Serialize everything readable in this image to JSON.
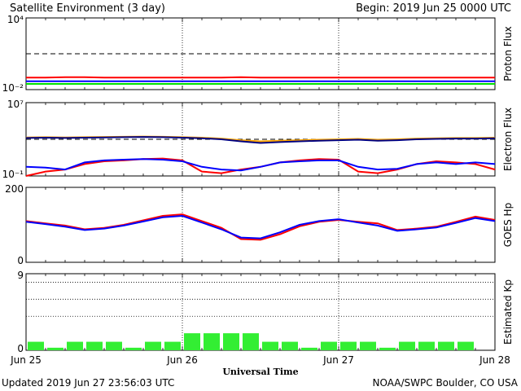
{
  "header": {
    "title": "Satellite Environment (3 day)",
    "begin": "Begin:  2019 Jun 25 0000 UTC"
  },
  "footer": {
    "updated": "Updated 2019 Jun 27 23:56:03 UTC",
    "credit": "NOAA/SWPC Boulder, CO USA"
  },
  "chart_data": [
    {
      "type": "line",
      "ylabel": "Proton Flux",
      "yscale": "log",
      "ylim": [
        0.01,
        10000
      ],
      "ytick_labels": [
        "10⁴",
        "10⁻²"
      ],
      "reference_line": {
        "y": 10,
        "style": "dashed"
      },
      "colors": {
        "high": "#ff0000",
        "mid": "#0000ff",
        "low": "#00e000"
      },
      "x_days": [
        0,
        0.125,
        0.25,
        0.375,
        0.5,
        0.625,
        0.75,
        0.875,
        1,
        1.125,
        1.25,
        1.375,
        1.5,
        1.625,
        1.75,
        1.875,
        2,
        2.125,
        2.25,
        2.375,
        2.5,
        2.625,
        2.75,
        2.875,
        3
      ],
      "series": [
        {
          "key": "high",
          "values": [
            0.1,
            0.1,
            0.11,
            0.11,
            0.1,
            0.1,
            0.1,
            0.1,
            0.1,
            0.1,
            0.1,
            0.11,
            0.1,
            0.1,
            0.1,
            0.1,
            0.1,
            0.1,
            0.1,
            0.1,
            0.1,
            0.1,
            0.1,
            0.1,
            0.1
          ]
        },
        {
          "key": "mid",
          "values": [
            0.05,
            0.05,
            0.05,
            0.05,
            0.05,
            0.05,
            0.05,
            0.05,
            0.05,
            0.05,
            0.05,
            0.05,
            0.05,
            0.05,
            0.05,
            0.05,
            0.05,
            0.05,
            0.05,
            0.05,
            0.05,
            0.05,
            0.05,
            0.05,
            0.05
          ]
        },
        {
          "key": "low",
          "values": [
            0.03,
            0.03,
            0.03,
            0.03,
            0.03,
            0.03,
            0.03,
            0.03,
            0.03,
            0.03,
            0.03,
            0.03,
            0.03,
            0.03,
            0.03,
            0.03,
            0.03,
            0.03,
            0.03,
            0.03,
            0.03,
            0.03,
            0.03,
            0.03,
            0.03
          ]
        }
      ]
    },
    {
      "type": "line",
      "ylabel": "Electron Flux",
      "yscale": "log",
      "ylim": [
        0.1,
        10000000
      ],
      "ytick_labels": [
        "10⁷",
        "10⁻¹"
      ],
      "reference_line": {
        "y": 1000,
        "style": "dashed"
      },
      "colors": {
        "high_energy": "#ff0000",
        "high_energy_2": "#0000ff",
        "low_energy": "#ffa500",
        "low_energy_2": "#000080"
      },
      "x_days": [
        0,
        0.125,
        0.25,
        0.375,
        0.5,
        0.625,
        0.75,
        0.875,
        1,
        1.125,
        1.25,
        1.375,
        1.5,
        1.625,
        1.75,
        1.875,
        2,
        2.125,
        2.25,
        2.375,
        2.5,
        2.625,
        2.75,
        2.875,
        3
      ],
      "series": [
        {
          "key": "low_energy",
          "values": [
            1600,
            1700,
            1600,
            1700,
            1800,
            1900,
            2000,
            1900,
            1700,
            1500,
            1200,
            800,
            600,
            700,
            800,
            900,
            1000,
            1100,
            900,
            1000,
            1200,
            1300,
            1400,
            1400,
            1500
          ]
        },
        {
          "key": "low_energy_2",
          "values": [
            1400,
            1500,
            1400,
            1500,
            1600,
            1700,
            1800,
            1700,
            1500,
            1300,
            1000,
            600,
            400,
            500,
            600,
            700,
            800,
            900,
            700,
            800,
            1000,
            1100,
            1200,
            1200,
            1300
          ]
        },
        {
          "key": "high_energy",
          "values": [
            0.1,
            0.3,
            0.5,
            2,
            4,
            5,
            7,
            8,
            5,
            0.3,
            0.2,
            0.5,
            1,
            3,
            5,
            7,
            6,
            0.3,
            0.2,
            0.5,
            2,
            4,
            3,
            2,
            0.5
          ]
        },
        {
          "key": "high_energy_2",
          "values": [
            1,
            0.8,
            0.5,
            3,
            5,
            6,
            7,
            6,
            4,
            1,
            0.5,
            0.4,
            1,
            3,
            4,
            5,
            5,
            1,
            0.5,
            0.6,
            2,
            3,
            2,
            3,
            2
          ]
        }
      ]
    },
    {
      "type": "line",
      "ylabel": "GOES Hp",
      "yscale": "linear",
      "ylim": [
        0,
        200
      ],
      "ytick_labels": [
        "200",
        "0"
      ],
      "colors": {
        "goes_a": "#ff0000",
        "goes_b": "#0000ff"
      },
      "x_days": [
        0,
        0.125,
        0.25,
        0.375,
        0.5,
        0.625,
        0.75,
        0.875,
        1,
        1.125,
        1.25,
        1.375,
        1.5,
        1.625,
        1.75,
        1.875,
        2,
        2.125,
        2.25,
        2.375,
        2.5,
        2.625,
        2.75,
        2.875,
        3
      ],
      "series": [
        {
          "key": "goes_a",
          "values": [
            110,
            104,
            98,
            88,
            92,
            100,
            112,
            124,
            128,
            110,
            92,
            62,
            60,
            75,
            96,
            108,
            113,
            108,
            104,
            86,
            90,
            95,
            108,
            122,
            113
          ]
        },
        {
          "key": "goes_b",
          "values": [
            108,
            102,
            95,
            86,
            90,
            98,
            109,
            120,
            124,
            106,
            88,
            66,
            64,
            80,
            100,
            110,
            115,
            106,
            98,
            84,
            88,
            93,
            105,
            118,
            110
          ]
        }
      ]
    },
    {
      "type": "bar",
      "ylabel": "Estimated Kp",
      "ylim": [
        0,
        9
      ],
      "ytick_labels": [
        "9",
        "0"
      ],
      "kp_gridlines": [
        4,
        6,
        8
      ],
      "bar_color": "#33ee33",
      "x_day_start": [
        0,
        0.125,
        0.25,
        0.375,
        0.5,
        0.625,
        0.75,
        0.875,
        1,
        1.125,
        1.25,
        1.375,
        1.5,
        1.625,
        1.75,
        1.875,
        2,
        2.125,
        2.25,
        2.375,
        2.5,
        2.625,
        2.75,
        2.875
      ],
      "values": [
        1,
        0.3,
        1,
        1,
        1,
        0.3,
        1,
        1,
        2,
        2,
        2,
        2,
        1,
        1,
        0.3,
        1,
        1,
        1,
        0.3,
        1,
        1,
        1,
        1,
        0
      ]
    }
  ],
  "shared_x_axis": {
    "xlabel": "Universal Time",
    "tick_labels": [
      "Jun 25",
      "Jun 26",
      "Jun 27",
      "Jun 28"
    ],
    "day_markers": [
      1,
      2
    ]
  }
}
